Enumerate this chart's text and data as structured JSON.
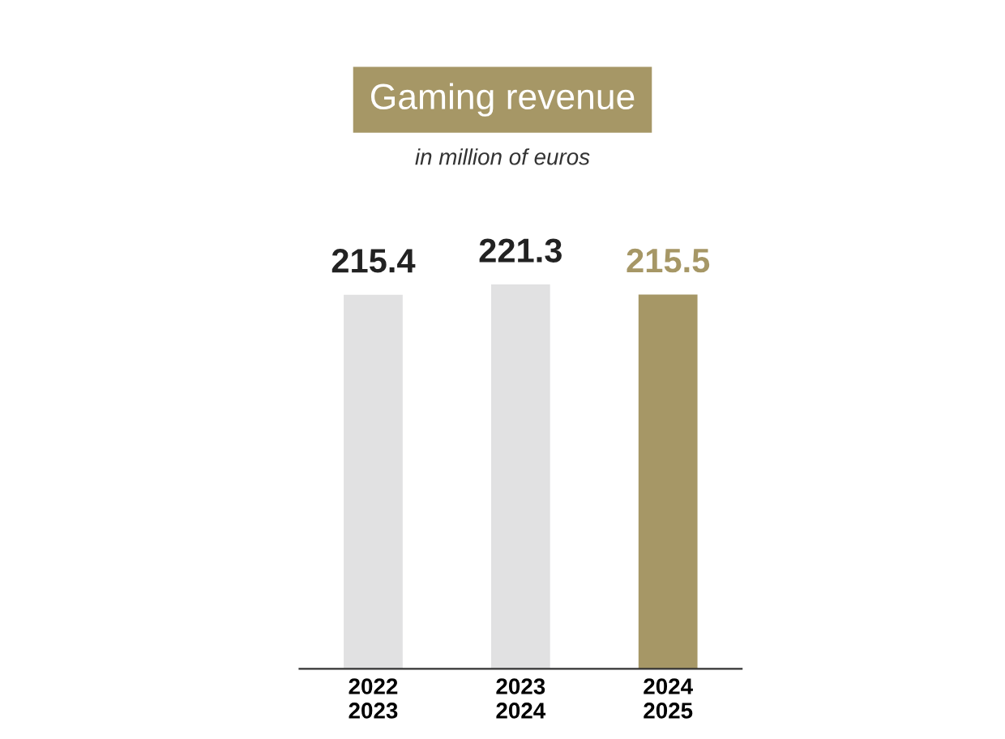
{
  "chart_data": {
    "type": "bar",
    "title": "Gaming revenue",
    "subtitle": "in million of euros",
    "categories": [
      "2022\n2023",
      "2023\n2024",
      "2024\n2025"
    ],
    "values": [
      215.4,
      221.3,
      215.5
    ],
    "colors": [
      "#e1e1e2",
      "#e1e1e2",
      "#a69766"
    ],
    "data_labels": true,
    "grid": false,
    "legend": false
  }
}
